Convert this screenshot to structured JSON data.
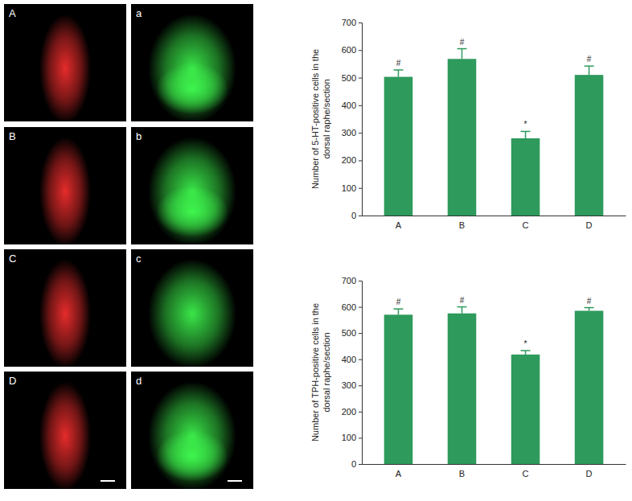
{
  "panels": [
    "A",
    "a",
    "B",
    "b",
    "C",
    "c",
    "D",
    "d"
  ],
  "chart_data": [
    {
      "type": "bar",
      "y_label": [
        "Number of 5-HT-positive cells in the",
        "dorsal raphe/section"
      ],
      "categories": [
        "A",
        "B",
        "C",
        "D"
      ],
      "values": [
        503,
        568,
        280,
        510
      ],
      "errors": [
        25,
        37,
        25,
        32
      ],
      "annotations": [
        "#",
        "#",
        "*",
        "#"
      ],
      "color": "#2e9a5c",
      "ylim": [
        0,
        700
      ],
      "yticks": [
        0,
        100,
        200,
        300,
        400,
        500,
        600,
        700
      ],
      "grid": false
    },
    {
      "type": "bar",
      "y_label": [
        "Number of TPH-positive cells in the",
        "dorsal raphe/section"
      ],
      "categories": [
        "A",
        "B",
        "C",
        "D"
      ],
      "values": [
        570,
        575,
        418,
        585
      ],
      "errors": [
        22,
        25,
        15,
        12
      ],
      "annotations": [
        "#",
        "#",
        "*",
        "#"
      ],
      "color": "#2e9a5c",
      "ylim": [
        0,
        700
      ],
      "yticks": [
        0,
        100,
        200,
        300,
        400,
        500,
        600,
        700
      ],
      "grid": false
    }
  ]
}
